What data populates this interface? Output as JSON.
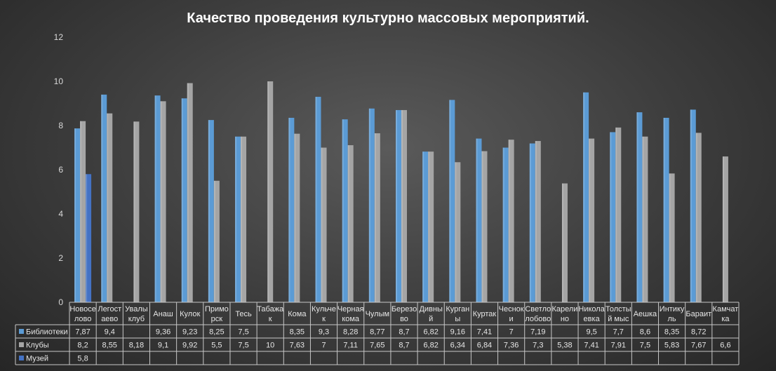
{
  "chart_data": {
    "type": "bar",
    "title": "Качество проведения культурно массовых мероприятий.",
    "ylim": [
      0,
      12
    ],
    "yticks": [
      "0",
      "2",
      "4",
      "6",
      "8",
      "10",
      "12"
    ],
    "grid": false,
    "legend": "data-table-left",
    "categories": [
      [
        "Новосе",
        "лово"
      ],
      [
        "Легост",
        "аево"
      ],
      [
        "Увалы",
        "клуб"
      ],
      [
        "Анаш"
      ],
      [
        "Кулок"
      ],
      [
        "Примо",
        "рск"
      ],
      [
        "Тесь"
      ],
      [
        "Табажа",
        "к"
      ],
      [
        "Кома"
      ],
      [
        "Кульче",
        "к"
      ],
      [
        "Черная",
        "кома"
      ],
      [
        "Чулым"
      ],
      [
        "Березо",
        "во"
      ],
      [
        "Дивны",
        "й"
      ],
      [
        "Курган",
        "ы"
      ],
      [
        "Куртак"
      ],
      [
        "Чеснок",
        "и"
      ],
      [
        "Светло",
        "лобово"
      ],
      [
        "Карели",
        "но"
      ],
      [
        "Никола",
        "евка"
      ],
      [
        "Толсты",
        "й мыс"
      ],
      [
        "Аешка"
      ],
      [
        "Интику",
        "ль"
      ],
      [
        "Бараит"
      ],
      [
        "Камчат",
        "ка"
      ]
    ],
    "series": [
      {
        "name": "Библиотеки",
        "color": "#5b9bd5",
        "values": [
          7.87,
          9.4,
          null,
          9.36,
          9.23,
          8.25,
          7.5,
          null,
          8.35,
          9.3,
          8.28,
          8.77,
          8.7,
          6.82,
          9.16,
          7.41,
          7,
          7.19,
          null,
          9.5,
          7.7,
          8.6,
          8.35,
          8.72,
          null
        ],
        "labels": [
          "7,87",
          "9,4",
          "",
          "9,36",
          "9,23",
          "8,25",
          "7,5",
          "",
          "8,35",
          "9,3",
          "8,28",
          "8,77",
          "8,7",
          "6,82",
          "9,16",
          "7,41",
          "7",
          "7,19",
          "",
          "9,5",
          "7,7",
          "8,6",
          "8,35",
          "8,72",
          ""
        ]
      },
      {
        "name": "Клубы",
        "color": "#a5a5a5",
        "values": [
          8.2,
          8.55,
          8.18,
          9.1,
          9.92,
          5.5,
          7.5,
          10,
          7.63,
          7,
          7.11,
          7.65,
          8.7,
          6.82,
          6.34,
          6.84,
          7.36,
          7.3,
          5.38,
          7.41,
          7.91,
          7.5,
          5.83,
          7.67,
          6.6
        ],
        "labels": [
          "8,2",
          "8,55",
          "8,18",
          "9,1",
          "9,92",
          "5,5",
          "7,5",
          "10",
          "7,63",
          "7",
          "7,11",
          "7,65",
          "8,7",
          "6,82",
          "6,34",
          "6,84",
          "7,36",
          "7,3",
          "5,38",
          "7,41",
          "7,91",
          "7,5",
          "5,83",
          "7,67",
          "6,6"
        ]
      },
      {
        "name": "Музей",
        "color": "#4472c4",
        "values": [
          5.8,
          null,
          null,
          null,
          null,
          null,
          null,
          null,
          null,
          null,
          null,
          null,
          null,
          null,
          null,
          null,
          null,
          null,
          null,
          null,
          null,
          null,
          null,
          null,
          null
        ],
        "labels": [
          "5,8",
          "",
          "",
          "",
          "",
          "",
          "",
          "",
          "",
          "",
          "",
          "",
          "",
          "",
          "",
          "",
          "",
          "",
          "",
          "",
          "",
          "",
          "",
          "",
          ""
        ]
      }
    ]
  }
}
